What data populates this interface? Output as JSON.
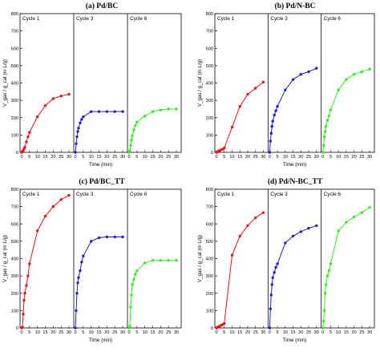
{
  "chart_data": [
    {
      "type": "line",
      "title": "(a) Pd/BC",
      "ylabel": "V_gas / g_cat (m L/g)",
      "xlabel": "Time (min)",
      "ylim": [
        0,
        800
      ],
      "xlim": [
        0,
        32
      ],
      "yticks": [
        "0",
        "100",
        "200",
        "300",
        "400",
        "500",
        "600",
        "700",
        "800"
      ],
      "xticks": [
        "0",
        "5",
        "10",
        "15",
        "20",
        "25",
        "30"
      ],
      "series": [
        {
          "name": "Cycle 1",
          "color": "#e8141a",
          "x": [
            0,
            0.5,
            1,
            1.5,
            2,
            3,
            4,
            5,
            10,
            15,
            20,
            25,
            30
          ],
          "y": [
            0,
            5,
            10,
            20,
            30,
            60,
            90,
            115,
            205,
            270,
            310,
            325,
            335
          ]
        },
        {
          "name": "Cycle 3",
          "color": "#1f1fd0",
          "x": [
            0,
            0.5,
            1,
            1.5,
            2,
            3,
            4,
            5,
            10,
            15,
            20,
            25,
            30
          ],
          "y": [
            0,
            50,
            90,
            120,
            140,
            170,
            190,
            205,
            235,
            235,
            235,
            235,
            235
          ]
        },
        {
          "name": "Cycle 6",
          "color": "#33ee22",
          "x": [
            0,
            0.5,
            1,
            1.5,
            2,
            3,
            4,
            5,
            10,
            15,
            20,
            25,
            30
          ],
          "y": [
            0,
            10,
            40,
            70,
            95,
            130,
            155,
            175,
            210,
            235,
            245,
            250,
            250
          ]
        }
      ]
    },
    {
      "type": "line",
      "title": "(b) Pd/N-BC",
      "ylabel": "V_gas / g_cat (m L/g)",
      "xlabel": "Time (min)",
      "ylim": [
        0,
        800
      ],
      "xlim": [
        0,
        32
      ],
      "yticks": [
        "0",
        "100",
        "200",
        "300",
        "400",
        "500",
        "600",
        "700",
        "800"
      ],
      "xticks": [
        "0",
        "5",
        "10",
        "15",
        "20",
        "25",
        "30"
      ],
      "series": [
        {
          "name": "Cycle 1",
          "color": "#e8141a",
          "x": [
            0,
            0.5,
            1,
            1.5,
            2,
            3,
            4,
            5,
            10,
            15,
            20,
            25,
            30
          ],
          "y": [
            0,
            2,
            5,
            8,
            10,
            15,
            18,
            25,
            145,
            265,
            335,
            370,
            405
          ]
        },
        {
          "name": "Cycle 3",
          "color": "#1f1fd0",
          "x": [
            0,
            0.5,
            1,
            1.5,
            2,
            3,
            4,
            5,
            10,
            15,
            20,
            25,
            30
          ],
          "y": [
            0,
            65,
            110,
            150,
            180,
            215,
            240,
            265,
            360,
            420,
            450,
            465,
            485
          ]
        },
        {
          "name": "Cycle 6",
          "color": "#33ee22",
          "x": [
            0,
            0.5,
            1,
            1.5,
            2,
            3,
            4,
            5,
            10,
            15,
            20,
            25,
            30
          ],
          "y": [
            0,
            40,
            90,
            120,
            150,
            185,
            210,
            245,
            360,
            420,
            450,
            465,
            480
          ]
        }
      ]
    },
    {
      "type": "line",
      "title": "(c) Pd/BC_TT",
      "ylabel": "V_gas / g_cat (m L/g)",
      "xlabel": "Time (min)",
      "ylim": [
        0,
        800
      ],
      "xlim": [
        0,
        32
      ],
      "yticks": [
        "0",
        "100",
        "200",
        "300",
        "400",
        "500",
        "600",
        "700",
        "800"
      ],
      "xticks": [
        "0",
        "5",
        "10",
        "15",
        "20",
        "25",
        "30"
      ],
      "series": [
        {
          "name": "Cycle 1",
          "color": "#e8141a",
          "x": [
            0,
            0.5,
            1,
            1.5,
            2,
            3,
            4,
            5,
            10,
            15,
            20,
            25,
            30
          ],
          "y": [
            0,
            5,
            80,
            160,
            200,
            245,
            300,
            370,
            560,
            645,
            700,
            740,
            765
          ]
        },
        {
          "name": "Cycle 3",
          "color": "#1f1fd0",
          "x": [
            0,
            0.5,
            1,
            1.5,
            2,
            3,
            4,
            5,
            10,
            15,
            20,
            25,
            30
          ],
          "y": [
            0,
            100,
            200,
            260,
            290,
            330,
            380,
            415,
            500,
            520,
            525,
            525,
            525
          ]
        },
        {
          "name": "Cycle 6",
          "color": "#33ee22",
          "x": [
            0,
            0.5,
            1,
            1.5,
            2,
            3,
            4,
            5,
            10,
            15,
            20,
            25,
            30
          ],
          "y": [
            0,
            10,
            120,
            190,
            250,
            280,
            310,
            330,
            375,
            390,
            390,
            390,
            390
          ]
        }
      ]
    },
    {
      "type": "line",
      "title": "(d) Pd/N-BC_TT",
      "ylabel": "V_gas / g_cat (m L/g)",
      "xlabel": "Time (min)",
      "ylim": [
        0,
        800
      ],
      "xlim": [
        0,
        32
      ],
      "yticks": [
        "0",
        "100",
        "200",
        "300",
        "400",
        "500",
        "600",
        "700",
        "800"
      ],
      "xticks": [
        "0",
        "5",
        "10",
        "15",
        "20",
        "25",
        "30"
      ],
      "series": [
        {
          "name": "Cycle 1",
          "color": "#e8141a",
          "x": [
            0,
            0.5,
            1,
            1.5,
            2,
            3,
            4,
            5,
            10,
            15,
            20,
            25,
            30
          ],
          "y": [
            0,
            2,
            5,
            8,
            10,
            15,
            20,
            25,
            420,
            530,
            590,
            635,
            665
          ]
        },
        {
          "name": "Cycle 3",
          "color": "#1f1fd0",
          "x": [
            0,
            0.5,
            1,
            1.5,
            2,
            3,
            4,
            5,
            10,
            15,
            20,
            25,
            30
          ],
          "y": [
            0,
            110,
            190,
            250,
            290,
            320,
            350,
            370,
            490,
            530,
            555,
            575,
            590
          ]
        },
        {
          "name": "Cycle 6",
          "color": "#33ee22",
          "x": [
            0,
            0.5,
            1,
            1.5,
            2,
            3,
            4,
            5,
            10,
            15,
            20,
            25,
            30
          ],
          "y": [
            0,
            40,
            100,
            200,
            250,
            300,
            330,
            370,
            560,
            610,
            640,
            665,
            695
          ]
        }
      ]
    }
  ]
}
